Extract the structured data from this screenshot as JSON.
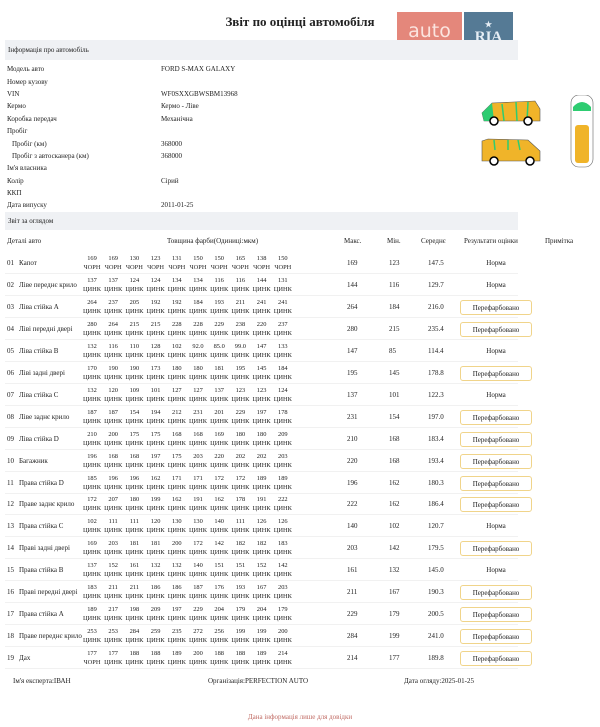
{
  "title": "Звіт по оцінці автомобіля",
  "logo": {
    "left": "auto",
    "right": "RIA",
    "domain": ".com",
    "colors": {
      "left": "#e4877b",
      "right": "#557a95"
    }
  },
  "info": {
    "header": "Інформація про автомобіль",
    "rows": [
      {
        "label": "Модель авто",
        "value": "FORD S-MAX GALAXY"
      },
      {
        "label": "Номер кузову",
        "value": ""
      },
      {
        "label": "VIN",
        "value": "WF0SXXGBWSBM13968"
      },
      {
        "label": "Кермо",
        "value": "Кермо - Ліве"
      },
      {
        "label": "Коробка передач",
        "value": "Механічна"
      },
      {
        "label": "Пробіг",
        "value": ""
      },
      {
        "label": "Пробіг (км)",
        "value": "368000",
        "sub": true
      },
      {
        "label": "Пробіг з автосканера (км)",
        "value": "368000",
        "sub": true
      },
      {
        "label": "Ім'я власника",
        "value": ""
      },
      {
        "label": "Колір",
        "value": "Сірий"
      },
      {
        "label": "ККП",
        "value": ""
      },
      {
        "label": "Дата випуску",
        "value": "2011-01-25"
      }
    ]
  },
  "report": {
    "header": "Звіт за оглядом",
    "columns": {
      "part": "Деталі авто",
      "thickness": "Товщина фарби(Одиниці:мкм)",
      "max": "Макс.",
      "min": "Мін.",
      "avg": "Середнє",
      "result": "Результати оцінки",
      "note": "Примітка"
    },
    "rows": [
      {
        "no": "01",
        "name": "Капот",
        "values": [
          "169",
          "169",
          "130",
          "123",
          "131",
          "150",
          "150",
          "165",
          "138",
          "150"
        ],
        "types": [
          "ЧОРН",
          "ЧОРН",
          "ЧОРН",
          "ЧОРН",
          "ЧОРН",
          "ЧОРН",
          "ЧОРН",
          "ЧОРН",
          "ЧОРН",
          "ЧОРН"
        ],
        "max": "169",
        "min": "123",
        "avg": "147.5",
        "result": "Норма"
      },
      {
        "no": "02",
        "name": "Ліве переднє крило",
        "values": [
          "137",
          "137",
          "124",
          "124",
          "134",
          "134",
          "116",
          "116",
          "144",
          "131"
        ],
        "types": "ЦИНК",
        "max": "144",
        "min": "116",
        "avg": "129.7",
        "result": "Норма"
      },
      {
        "no": "03",
        "name": "Ліва стійка A",
        "values": [
          "264",
          "237",
          "205",
          "192",
          "192",
          "184",
          "193",
          "211",
          "241",
          "241"
        ],
        "types": "ЦИНК",
        "max": "264",
        "min": "184",
        "avg": "216.0",
        "result": "Перефарбовано"
      },
      {
        "no": "04",
        "name": "Ліві передні двері",
        "values": [
          "280",
          "264",
          "215",
          "215",
          "228",
          "228",
          "229",
          "238",
          "220",
          "237"
        ],
        "types": "ЦИНК",
        "max": "280",
        "min": "215",
        "avg": "235.4",
        "result": "Перефарбовано"
      },
      {
        "no": "05",
        "name": "Ліва стійка B",
        "values": [
          "132",
          "116",
          "110",
          "128",
          "102",
          "92.0",
          "85.0",
          "99.0",
          "147",
          "133"
        ],
        "types": "ЦИНК",
        "max": "147",
        "min": "85",
        "avg": "114.4",
        "result": "Норма"
      },
      {
        "no": "06",
        "name": "Ліві задні двері",
        "values": [
          "170",
          "190",
          "190",
          "173",
          "180",
          "180",
          "181",
          "195",
          "145",
          "184"
        ],
        "types": "ЦИНК",
        "max": "195",
        "min": "145",
        "avg": "178.8",
        "result": "Перефарбовано"
      },
      {
        "no": "07",
        "name": "Ліва стійка C",
        "values": [
          "132",
          "120",
          "109",
          "101",
          "127",
          "127",
          "137",
          "123",
          "123",
          "124"
        ],
        "types": "ЦИНК",
        "max": "137",
        "min": "101",
        "avg": "122.3",
        "result": "Норма"
      },
      {
        "no": "08",
        "name": "Ліве заднє крило",
        "values": [
          "187",
          "187",
          "154",
          "194",
          "212",
          "231",
          "201",
          "229",
          "197",
          "178"
        ],
        "types": "ЦИНК",
        "max": "231",
        "min": "154",
        "avg": "197.0",
        "result": "Перефарбовано"
      },
      {
        "no": "09",
        "name": "Ліва стійка D",
        "values": [
          "210",
          "200",
          "175",
          "175",
          "168",
          "168",
          "169",
          "180",
          "180",
          "209"
        ],
        "types": "ЦИНК",
        "max": "210",
        "min": "168",
        "avg": "183.4",
        "result": "Перефарбовано"
      },
      {
        "no": "10",
        "name": "Багажник",
        "values": [
          "196",
          "168",
          "168",
          "197",
          "175",
          "203",
          "220",
          "202",
          "202",
          "203"
        ],
        "types": "ЦИНК",
        "max": "220",
        "min": "168",
        "avg": "193.4",
        "result": "Перефарбовано"
      },
      {
        "no": "11",
        "name": "Права стійка D",
        "values": [
          "185",
          "196",
          "196",
          "162",
          "171",
          "171",
          "172",
          "172",
          "189",
          "189"
        ],
        "types": "ЦИНК",
        "max": "196",
        "min": "162",
        "avg": "180.3",
        "result": "Перефарбовано"
      },
      {
        "no": "12",
        "name": "Праве заднє крило",
        "values": [
          "172",
          "207",
          "180",
          "199",
          "162",
          "191",
          "162",
          "178",
          "191",
          "222"
        ],
        "types": "ЦИНК",
        "max": "222",
        "min": "162",
        "avg": "186.4",
        "result": "Перефарбовано"
      },
      {
        "no": "13",
        "name": "Права стійка C",
        "values": [
          "102",
          "111",
          "111",
          "120",
          "130",
          "130",
          "140",
          "111",
          "126",
          "126"
        ],
        "types": "ЦИНК",
        "max": "140",
        "min": "102",
        "avg": "120.7",
        "result": "Норма"
      },
      {
        "no": "14",
        "name": "Праві задні двері",
        "values": [
          "169",
          "203",
          "181",
          "181",
          "200",
          "172",
          "142",
          "182",
          "182",
          "183"
        ],
        "types": "ЦИНК",
        "max": "203",
        "min": "142",
        "avg": "179.5",
        "result": "Перефарбовано"
      },
      {
        "no": "15",
        "name": "Права стійка B",
        "values": [
          "137",
          "152",
          "161",
          "132",
          "132",
          "140",
          "151",
          "151",
          "152",
          "142"
        ],
        "types": "ЦИНК",
        "max": "161",
        "min": "132",
        "avg": "145.0",
        "result": "Норма"
      },
      {
        "no": "16",
        "name": "Праві передні двері",
        "values": [
          "183",
          "211",
          "211",
          "186",
          "186",
          "187",
          "176",
          "193",
          "167",
          "203"
        ],
        "types": "ЦИНК",
        "max": "211",
        "min": "167",
        "avg": "190.3",
        "result": "Перефарбовано"
      },
      {
        "no": "17",
        "name": "Права стійка A",
        "values": [
          "189",
          "217",
          "198",
          "209",
          "197",
          "229",
          "204",
          "179",
          "204",
          "179"
        ],
        "types": "ЦИНК",
        "max": "229",
        "min": "179",
        "avg": "200.5",
        "result": "Перефарбовано"
      },
      {
        "no": "18",
        "name": "Праве переднє крило",
        "values": [
          "253",
          "253",
          "284",
          "259",
          "235",
          "272",
          "256",
          "199",
          "199",
          "200"
        ],
        "types": "ЦИНК",
        "max": "284",
        "min": "199",
        "avg": "241.0",
        "result": "Перефарбовано"
      },
      {
        "no": "19",
        "name": "Дах",
        "values": [
          "177",
          "177",
          "188",
          "188",
          "189",
          "200",
          "188",
          "188",
          "189",
          "214"
        ],
        "types": [
          "ЧОРН",
          "ЦИНК",
          "ЦИНК",
          "ЦИНК",
          "ЦИНК",
          "ЦИНК",
          "ЦИНК",
          "ЦИНК",
          "ЦИНК",
          "ЦИНК"
        ],
        "max": "214",
        "min": "177",
        "avg": "189.8",
        "result": "Перефарбовано"
      }
    ]
  },
  "footer": {
    "expert": "Ім'я експерта:ІВАН",
    "org": "Організація:PERFECTION AUTO",
    "date": "Дата огляду:2025-01-25",
    "disclaimer": "Дана інформація лише для довідки"
  },
  "colors": {
    "repainted_border": "#f0d48a",
    "car_fill": "#f0b429",
    "car_green": "#2ecc71",
    "disclaimer": "#c06a63"
  }
}
